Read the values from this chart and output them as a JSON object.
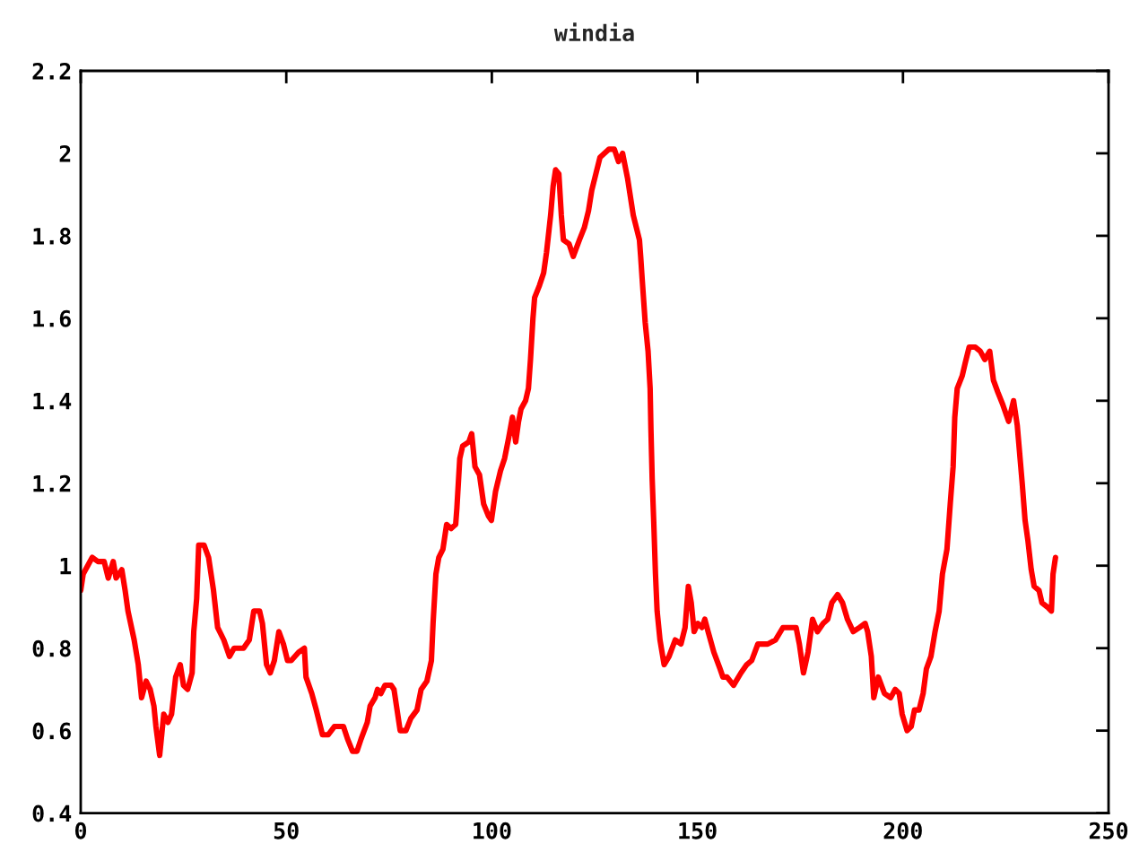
{
  "chart_data": {
    "type": "line",
    "title": "windia",
    "series": [
      {
        "color": "#ff0000",
        "x": [
          0,
          0.6,
          2.8,
          4.2,
          5.7,
          6.7,
          7.9,
          8.6,
          10.0,
          10.8,
          11.5,
          13.0,
          14.0,
          14.8,
          15.9,
          16.9,
          17.8,
          18.3,
          19.2,
          20.2,
          21.2,
          22.1,
          23.1,
          24.2,
          25.0,
          26.0,
          27.1,
          27.5,
          28.2,
          28.7,
          30.0,
          31.1,
          32.3,
          33.3,
          34.8,
          36.2,
          37.3,
          39.6,
          41.0,
          42.1,
          43.5,
          44.2,
          45.2,
          46.1,
          47.1,
          48.2,
          49.3,
          50.3,
          51.2,
          53.0,
          54.4,
          54.8,
          56.2,
          57.3,
          58.8,
          60.2,
          61.7,
          63.9,
          64.9,
          66.1,
          67.2,
          68.2,
          69.7,
          70.4,
          71.6,
          72.2,
          73.0,
          74.0,
          75.5,
          76.2,
          77.7,
          79.1,
          80.3,
          81.8,
          82.8,
          84.2,
          85.3,
          85.7,
          86.4,
          87.1,
          88.1,
          89.0,
          90.1,
          91.2,
          91.5,
          92.2,
          92.9,
          94.4,
          95.1,
          95.9,
          97.0,
          98.0,
          99.2,
          99.9,
          100.9,
          102.1,
          103.1,
          104.1,
          105.0,
          105.8,
          106.5,
          107.1,
          108.2,
          108.9,
          109.4,
          110.0,
          110.4,
          111.6,
          112.6,
          113.3,
          114.3,
          114.9,
          115.5,
          116.3,
          116.9,
          117.4,
          118.8,
          119.8,
          121.3,
          122.5,
          123.5,
          124.3,
          126.3,
          128.5,
          129.8,
          130.8,
          131.8,
          133.0,
          134.4,
          135.9,
          136.2,
          136.6,
          137.3,
          138.0,
          138.5,
          138.7,
          139.0,
          139.4,
          139.8,
          140.2,
          140.9,
          141.9,
          143.1,
          144.6,
          146.0,
          147.0,
          147.8,
          148.5,
          149.2,
          150.1,
          151.1,
          151.8,
          152.6,
          154.0,
          155.5,
          156.2,
          157.2,
          158.8,
          160.6,
          162.0,
          163.2,
          164.7,
          167.1,
          169.0,
          170.8,
          174.0,
          174.8,
          175.8,
          176.9,
          178.0,
          179.2,
          180.6,
          181.7,
          182.7,
          184.1,
          185.3,
          186.5,
          187.9,
          189.4,
          190.8,
          191.4,
          192.3,
          192.9,
          194.0,
          195.5,
          197.0,
          198.1,
          199.1,
          199.8,
          201.0,
          202.0,
          202.8,
          203.9,
          204.9,
          205.7,
          206.8,
          207.8,
          208.8,
          209.6,
          210.7,
          211.5,
          212.2,
          212.6,
          213.2,
          214.4,
          215.1,
          216.1,
          217.6,
          218.8,
          219.9,
          221.1,
          222.0,
          223.1,
          224.3,
          225.7,
          226.9,
          227.8,
          228.4,
          229.0,
          229.7,
          230.4,
          231.2,
          231.9,
          233.1,
          233.8,
          235.1,
          236.1,
          236.5,
          237.1
        ],
        "values": [
          0.94,
          0.98,
          1.02,
          1.01,
          1.01,
          0.97,
          1.01,
          0.97,
          0.99,
          0.94,
          0.89,
          0.82,
          0.76,
          0.68,
          0.72,
          0.7,
          0.66,
          0.61,
          0.54,
          0.64,
          0.62,
          0.64,
          0.73,
          0.76,
          0.71,
          0.7,
          0.74,
          0.84,
          0.92,
          1.05,
          1.05,
          1.02,
          0.94,
          0.85,
          0.82,
          0.78,
          0.8,
          0.8,
          0.82,
          0.89,
          0.89,
          0.86,
          0.76,
          0.74,
          0.77,
          0.84,
          0.81,
          0.77,
          0.77,
          0.79,
          0.8,
          0.73,
          0.69,
          0.65,
          0.59,
          0.59,
          0.61,
          0.61,
          0.58,
          0.55,
          0.55,
          0.58,
          0.62,
          0.66,
          0.68,
          0.7,
          0.69,
          0.71,
          0.71,
          0.7,
          0.6,
          0.6,
          0.63,
          0.65,
          0.7,
          0.72,
          0.77,
          0.86,
          0.98,
          1.02,
          1.04,
          1.1,
          1.09,
          1.1,
          1.14,
          1.26,
          1.29,
          1.3,
          1.32,
          1.24,
          1.22,
          1.15,
          1.12,
          1.11,
          1.18,
          1.23,
          1.26,
          1.31,
          1.36,
          1.3,
          1.35,
          1.38,
          1.4,
          1.43,
          1.5,
          1.6,
          1.65,
          1.68,
          1.71,
          1.76,
          1.85,
          1.92,
          1.96,
          1.95,
          1.85,
          1.79,
          1.78,
          1.75,
          1.79,
          1.82,
          1.86,
          1.91,
          1.99,
          2.01,
          2.01,
          1.98,
          2.0,
          1.94,
          1.85,
          1.79,
          1.75,
          1.69,
          1.59,
          1.52,
          1.43,
          1.33,
          1.21,
          1.1,
          0.98,
          0.89,
          0.82,
          0.76,
          0.78,
          0.82,
          0.81,
          0.85,
          0.95,
          0.91,
          0.84,
          0.86,
          0.85,
          0.87,
          0.84,
          0.79,
          0.75,
          0.73,
          0.73,
          0.71,
          0.74,
          0.76,
          0.77,
          0.81,
          0.81,
          0.82,
          0.85,
          0.85,
          0.81,
          0.74,
          0.79,
          0.87,
          0.84,
          0.86,
          0.87,
          0.91,
          0.93,
          0.91,
          0.87,
          0.84,
          0.85,
          0.86,
          0.84,
          0.78,
          0.68,
          0.73,
          0.69,
          0.68,
          0.7,
          0.69,
          0.64,
          0.6,
          0.61,
          0.65,
          0.65,
          0.69,
          0.75,
          0.78,
          0.84,
          0.89,
          0.98,
          1.04,
          1.15,
          1.24,
          1.36,
          1.43,
          1.46,
          1.49,
          1.53,
          1.53,
          1.52,
          1.5,
          1.52,
          1.45,
          1.42,
          1.39,
          1.35,
          1.4,
          1.34,
          1.27,
          1.2,
          1.11,
          1.06,
          0.99,
          0.95,
          0.94,
          0.91,
          0.9,
          0.89,
          0.98,
          1.02
        ]
      }
    ],
    "xlim": [
      0,
      250
    ],
    "xticks": [
      0,
      50,
      100,
      150,
      200,
      250
    ],
    "ylim": [
      0.4,
      2.2
    ],
    "yticks": [
      0.4,
      0.6,
      0.8,
      1,
      1.2,
      1.4,
      1.6,
      1.8,
      2,
      2.2
    ],
    "grid": false,
    "marker": "none",
    "line_style": "solid"
  }
}
